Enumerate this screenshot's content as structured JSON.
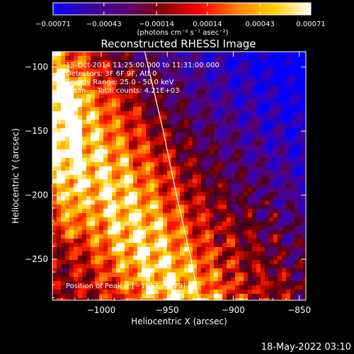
{
  "chart_data": {
    "type": "heatmap",
    "title": "Reconstructed RHESSI Image",
    "xlabel": "Heliocentric X (arcsec)",
    "ylabel": "Heliocentric Y (arcsec)",
    "xlim": [
      -1037,
      -845
    ],
    "ylim": [
      -282,
      -88
    ],
    "xticks": [
      -1000,
      -950,
      -900,
      -850
    ],
    "xtick_labels": [
      "−1000",
      "−950",
      "−900",
      "−850"
    ],
    "yticks": [
      -100,
      -150,
      -200,
      -250
    ],
    "ytick_labels": [
      "−100",
      "−150",
      "−200",
      "−250"
    ],
    "colorbar": {
      "min": -0.00071,
      "max": 0.00071,
      "ticks": [
        -0.00071,
        -0.00043,
        -0.00014,
        0.00014,
        0.00043,
        0.00071
      ],
      "tick_labels": [
        "−0.00071",
        "−0.00043",
        "−0.00014",
        "0.00014",
        "0.00043",
        "0.00071"
      ],
      "units": "(photons cm⁻² s⁻¹ asec⁻²)",
      "colors": [
        "#0000ff",
        "#3a00a8",
        "#5a0070",
        "#8a0000",
        "#ff0000",
        "#ff8000",
        "#ffd000",
        "#ffffff"
      ]
    },
    "annotations": [
      "15-Oct-2014 11:25:00.000 to 11:31:00.000",
      "Detectors: 3F 6F 9F, Att 0",
      "Energy Range: 25.0 - 50.0 keV",
      "Clean     Total counts: 4.21E+03"
    ],
    "peak_label": "Position of Peak = [−1013, −179]",
    "peak_position": [
      -1013,
      -179
    ],
    "limb_curve": [
      [
        -967,
        -88
      ],
      [
        -953,
        -150
      ],
      [
        -943,
        -200
      ],
      [
        -932,
        -250
      ],
      [
        -926,
        -282
      ]
    ],
    "grid": false,
    "legend": "none"
  },
  "footer": {
    "timestamp": "18-May-2022 03:10"
  }
}
